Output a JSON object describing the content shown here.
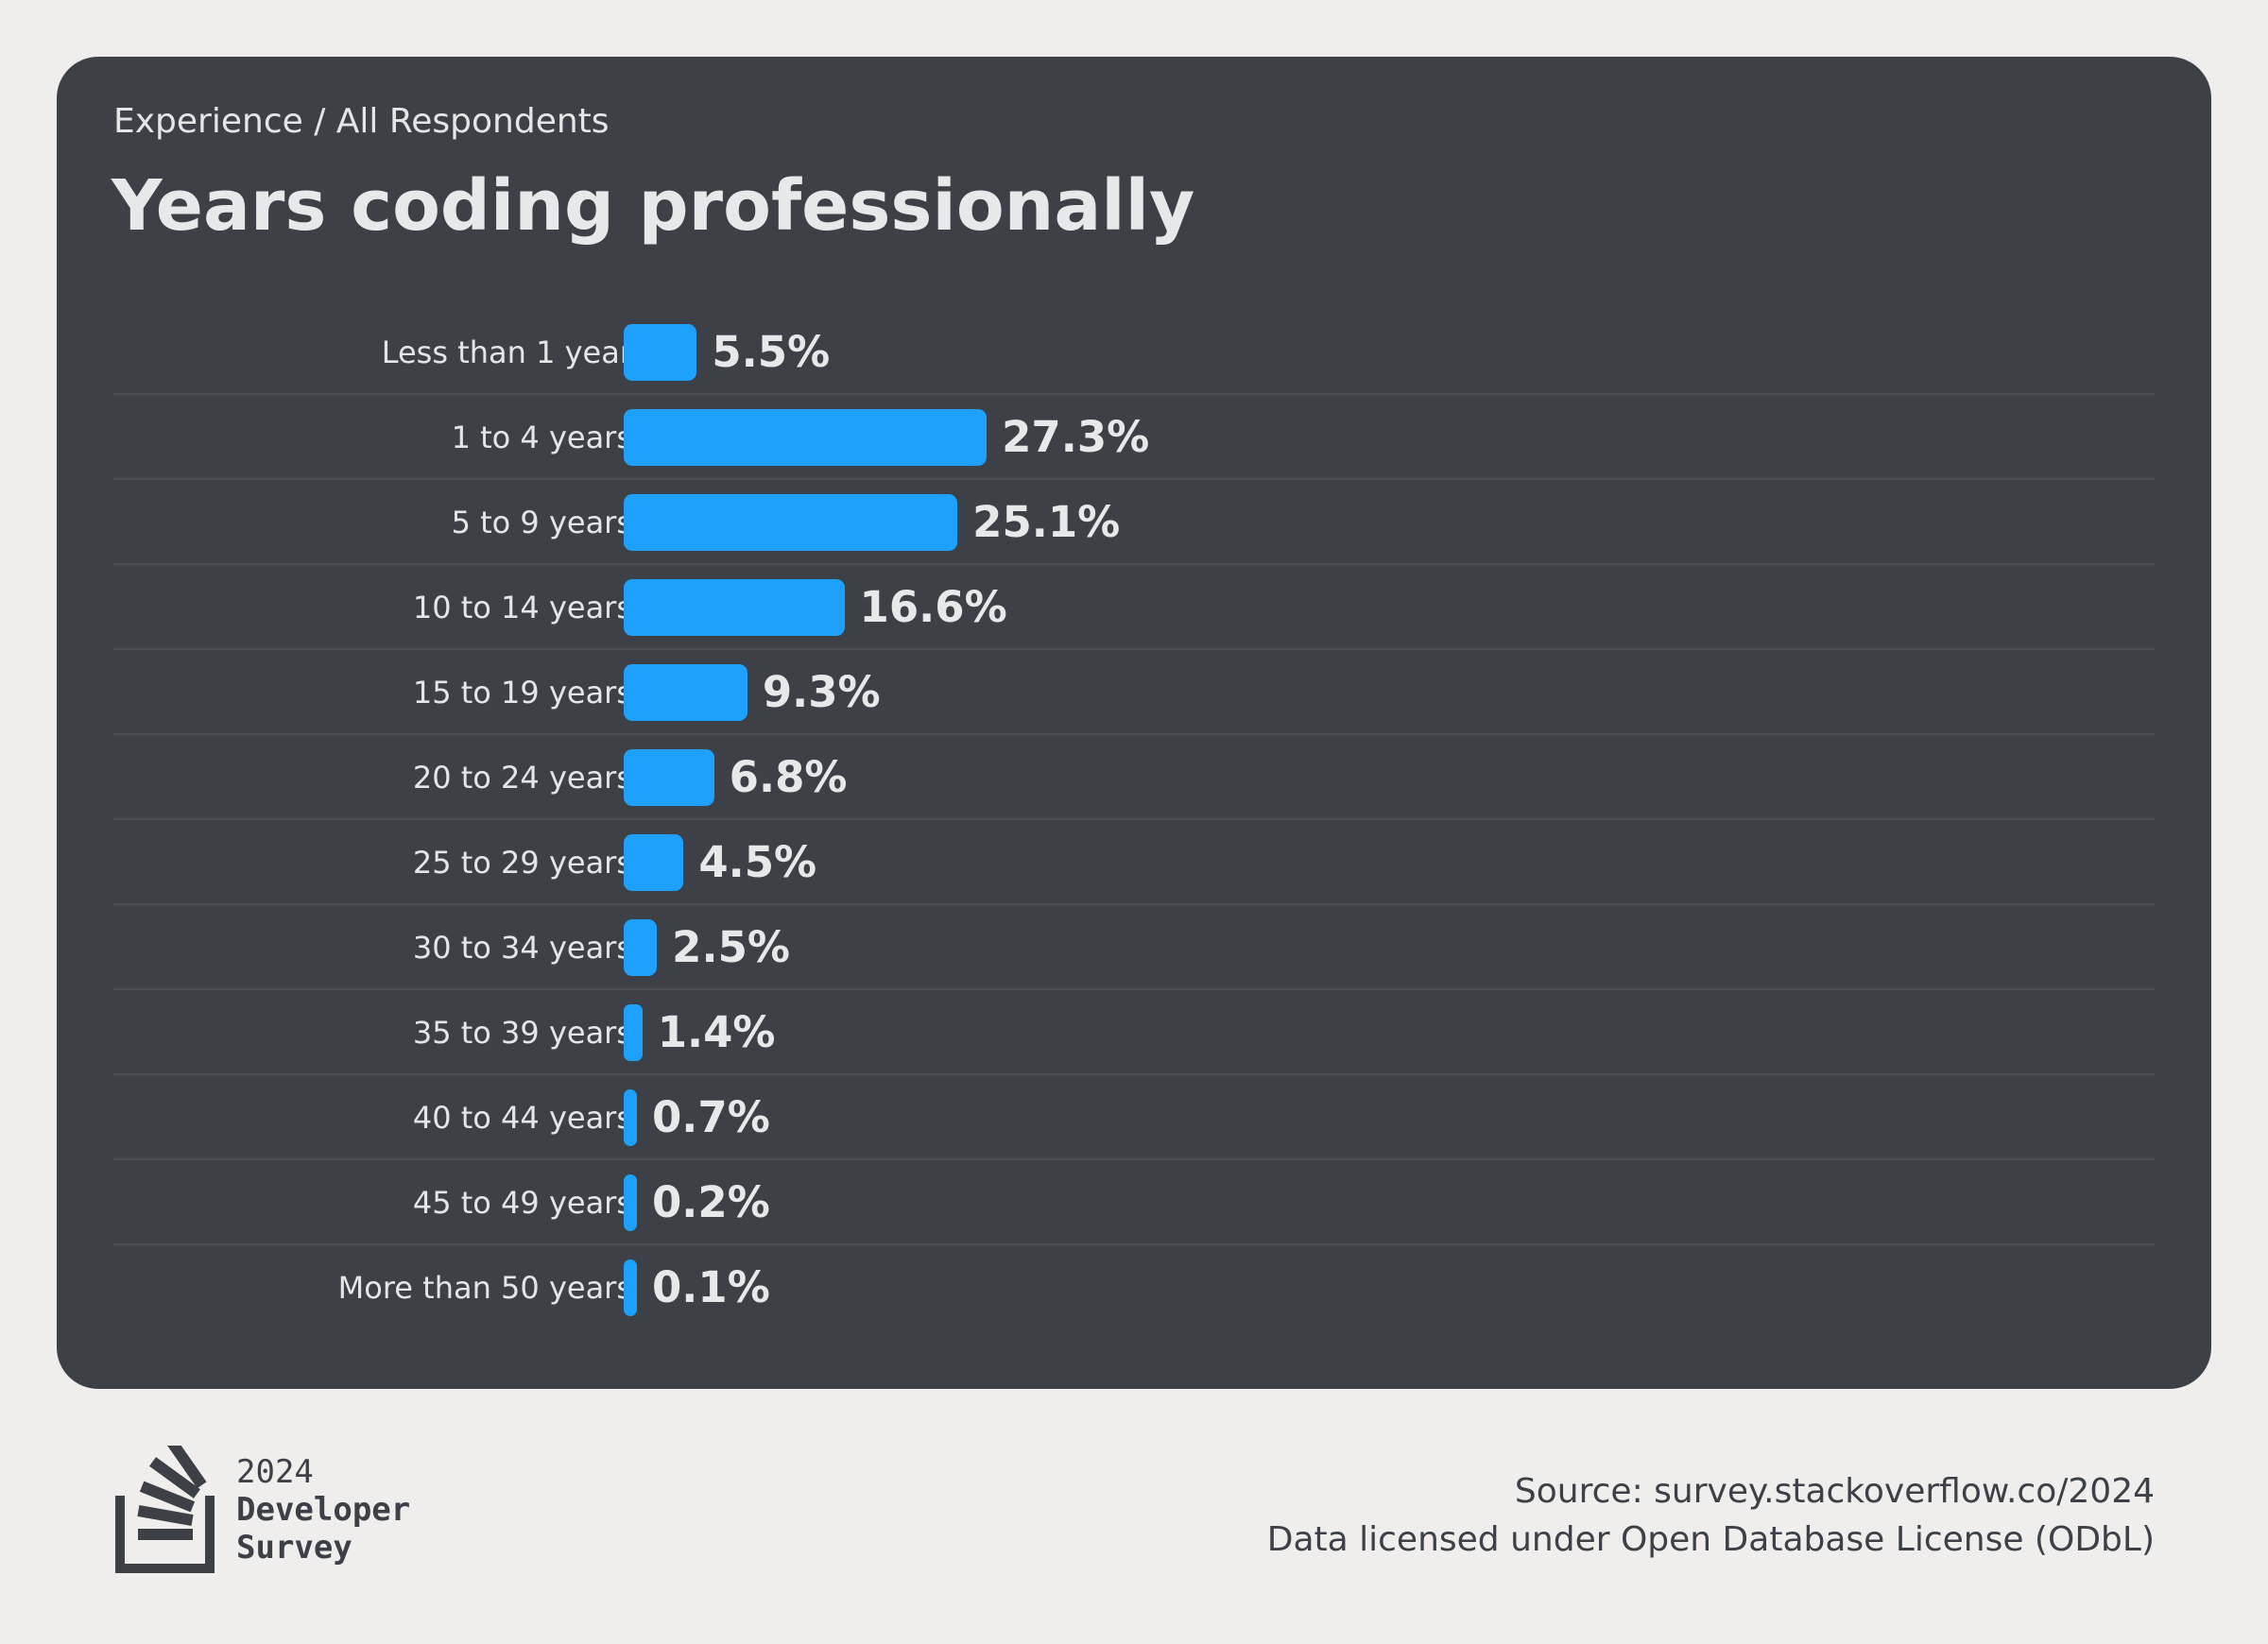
{
  "header": {
    "breadcrumb": "Experience / All Respondents",
    "title": "Years coding professionally"
  },
  "colors": {
    "bar": "#1da1fc",
    "card": "#3d4047",
    "background": "#efeeec"
  },
  "chart_data": {
    "type": "bar",
    "orientation": "horizontal",
    "title": "Years coding professionally",
    "categories": [
      "Less than 1 year",
      "1 to 4 years",
      "5 to 9 years",
      "10 to 14 years",
      "15 to 19 years",
      "20 to 24 years",
      "25 to 29 years",
      "30 to 34 years",
      "35 to 39 years",
      "40 to 44 years",
      "45 to 49 years",
      "More than 50 years"
    ],
    "values": [
      5.5,
      27.3,
      25.1,
      16.6,
      9.3,
      6.8,
      4.5,
      2.5,
      1.4,
      0.7,
      0.2,
      0.1
    ],
    "value_labels": [
      "5.5%",
      "27.3%",
      "25.1%",
      "16.6%",
      "9.3%",
      "6.8%",
      "4.5%",
      "2.5%",
      "1.4%",
      "0.7%",
      "0.2%",
      "0.1%"
    ],
    "unit": "%",
    "grid": false
  },
  "footer": {
    "logo_year": "2024",
    "logo_line1": "Developer",
    "logo_line2": "Survey",
    "source": "Source: survey.stackoverflow.co/2024",
    "license": "Data licensed under Open Database License (ODbL)"
  }
}
